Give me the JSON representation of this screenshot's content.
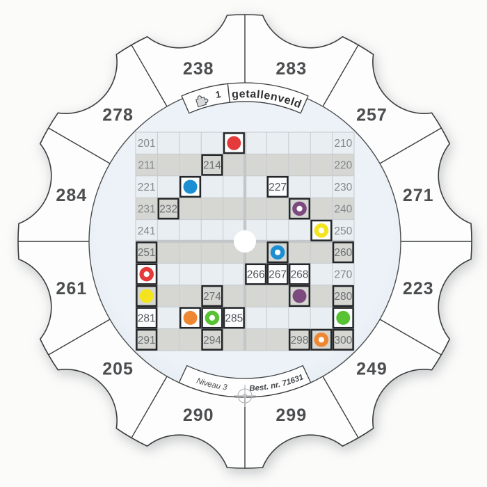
{
  "product": {
    "series_number": "1",
    "title": "getallenveld",
    "level": "Niveau 3",
    "order_number": "Best. nr. 71631"
  },
  "outer_ring": {
    "numbers": [
      {
        "label": "283",
        "angle": 15
      },
      {
        "label": "257",
        "angle": 45
      },
      {
        "label": "271",
        "angle": 75
      },
      {
        "label": "223",
        "angle": 105
      },
      {
        "label": "249",
        "angle": 135
      },
      {
        "label": "299",
        "angle": 165
      },
      {
        "label": "290",
        "angle": 195
      },
      {
        "label": "205",
        "angle": 225
      },
      {
        "label": "261",
        "angle": 255
      },
      {
        "label": "284",
        "angle": 285
      },
      {
        "label": "278",
        "angle": 315
      },
      {
        "label": "238",
        "angle": 345
      }
    ]
  },
  "palette": {
    "red": "#e43a3c",
    "blue": "#1b8fd1",
    "purple": "#7c4a7f",
    "yellow": "#f3e41f",
    "orange": "#ef8630",
    "green": "#57c232"
  },
  "grid": {
    "rows": 10,
    "cols": 10,
    "range_start": 201,
    "range_end": 300,
    "cells": [
      {
        "r": 1,
        "c": 1,
        "n": "201"
      },
      {
        "r": 1,
        "c": 5,
        "m": "red",
        "t": "fill",
        "o": true
      },
      {
        "r": 1,
        "c": 10,
        "n": "210"
      },
      {
        "r": 2,
        "c": 1,
        "n": "211"
      },
      {
        "r": 2,
        "c": 4,
        "n": "214",
        "o": true
      },
      {
        "r": 2,
        "c": 10,
        "n": "220"
      },
      {
        "r": 3,
        "c": 1,
        "n": "221"
      },
      {
        "r": 3,
        "c": 3,
        "m": "blue",
        "t": "fill",
        "o": true
      },
      {
        "r": 3,
        "c": 7,
        "n": "227",
        "o": true
      },
      {
        "r": 3,
        "c": 10,
        "n": "230"
      },
      {
        "r": 4,
        "c": 1,
        "n": "231"
      },
      {
        "r": 4,
        "c": 2,
        "n": "232",
        "o": true
      },
      {
        "r": 4,
        "c": 8,
        "m": "purple",
        "t": "ring",
        "o": true
      },
      {
        "r": 4,
        "c": 10,
        "n": "240"
      },
      {
        "r": 5,
        "c": 1,
        "n": "241"
      },
      {
        "r": 5,
        "c": 9,
        "m": "yellow",
        "t": "ring",
        "o": true
      },
      {
        "r": 5,
        "c": 10,
        "n": "250"
      },
      {
        "r": 6,
        "c": 1,
        "n": "251",
        "o": true
      },
      {
        "r": 6,
        "c": 7,
        "m": "blue",
        "t": "ring",
        "o": true
      },
      {
        "r": 6,
        "c": 10,
        "n": "260",
        "o": true
      },
      {
        "r": 7,
        "c": 1,
        "m": "red",
        "t": "ring",
        "o": true
      },
      {
        "r": 7,
        "c": 6,
        "n": "266",
        "o": true
      },
      {
        "r": 7,
        "c": 7,
        "n": "267",
        "o": true
      },
      {
        "r": 7,
        "c": 8,
        "n": "268",
        "o": true
      },
      {
        "r": 7,
        "c": 10,
        "n": "270"
      },
      {
        "r": 8,
        "c": 1,
        "m": "yellow",
        "t": "fill",
        "o": true
      },
      {
        "r": 8,
        "c": 4,
        "n": "274",
        "o": true
      },
      {
        "r": 8,
        "c": 8,
        "m": "purple",
        "t": "fill",
        "o": true
      },
      {
        "r": 8,
        "c": 10,
        "n": "280",
        "o": true
      },
      {
        "r": 9,
        "c": 1,
        "n": "281",
        "o": true
      },
      {
        "r": 9,
        "c": 3,
        "m": "orange",
        "t": "fill",
        "o": true
      },
      {
        "r": 9,
        "c": 4,
        "m": "green",
        "t": "ring",
        "o": true
      },
      {
        "r": 9,
        "c": 5,
        "n": "285",
        "o": true
      },
      {
        "r": 9,
        "c": 10,
        "m": "green",
        "t": "fill",
        "o": true
      },
      {
        "r": 10,
        "c": 1,
        "n": "291",
        "o": true
      },
      {
        "r": 10,
        "c": 4,
        "n": "294",
        "o": true
      },
      {
        "r": 10,
        "c": 8,
        "n": "298",
        "o": true
      },
      {
        "r": 10,
        "c": 9,
        "m": "orange",
        "t": "ring",
        "o": true
      },
      {
        "r": 10,
        "c": 10,
        "n": "300",
        "o": true
      }
    ]
  },
  "center": {
    "pivot": "white-dot"
  },
  "icons": {
    "top_left_of_banner": "puzzle-icon",
    "bottom_center": "registration-crosshair-icon"
  }
}
